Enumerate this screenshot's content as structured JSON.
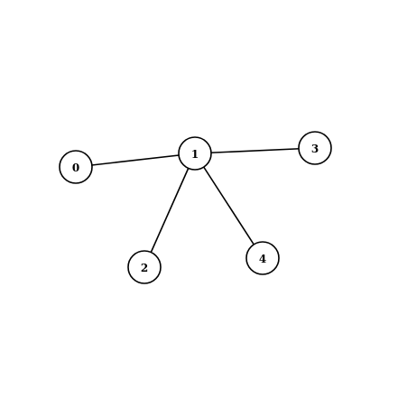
{
  "graph": {
    "nodes": [
      {
        "id": "n0",
        "label": "0"
      },
      {
        "id": "n1",
        "label": "1"
      },
      {
        "id": "n2",
        "label": "2"
      },
      {
        "id": "n3",
        "label": "3"
      },
      {
        "id": "n4",
        "label": "4"
      }
    ],
    "edges": [
      {
        "from": "0",
        "to": "1"
      },
      {
        "from": "1",
        "to": "3"
      },
      {
        "from": "1",
        "to": "2"
      },
      {
        "from": "1",
        "to": "4"
      }
    ]
  }
}
